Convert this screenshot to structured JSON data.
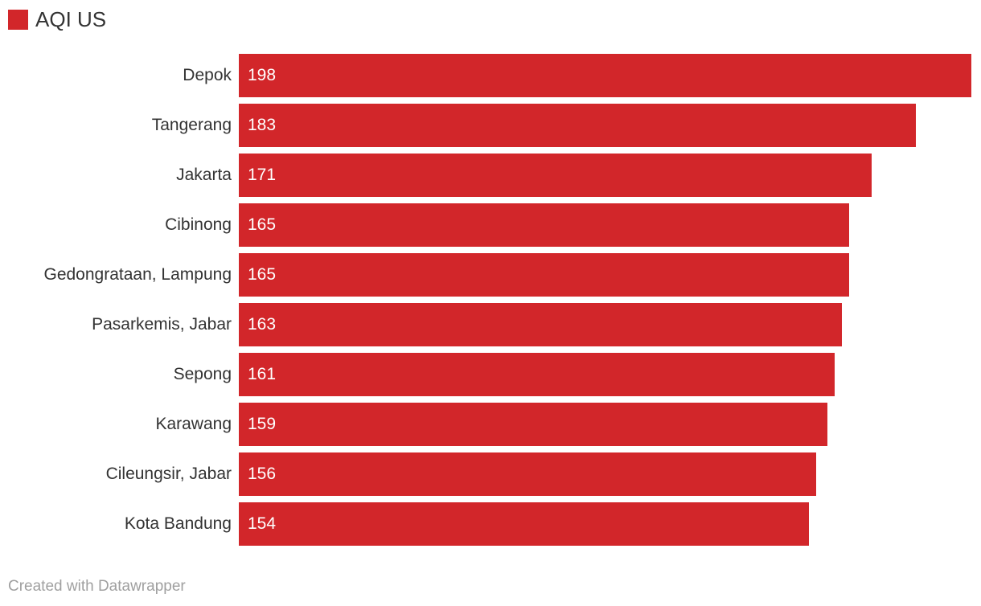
{
  "legend": {
    "label": "AQI US",
    "swatch_color": "#d2262a"
  },
  "footer": {
    "attribution": "Created with Datawrapper"
  },
  "chart_data": {
    "type": "bar",
    "orientation": "horizontal",
    "title": "",
    "series_name": "AQI US",
    "categories": [
      "Depok",
      "Tangerang",
      "Jakarta",
      "Cibinong",
      "Gedongrataan, Lampung",
      "Pasarkemis, Jabar",
      "Sepong",
      "Karawang",
      "Cileungsir, Jabar",
      "Kota Bandung"
    ],
    "values": [
      198,
      183,
      171,
      165,
      165,
      163,
      161,
      159,
      156,
      154
    ],
    "xlim": [
      0,
      198
    ],
    "bar_color": "#d2262a",
    "value_label_color": "#ffffff",
    "category_label_color": "#333333",
    "value_labels_position": "inside-start",
    "grid": false,
    "axis_visible": false,
    "legend_position": "top-left"
  }
}
